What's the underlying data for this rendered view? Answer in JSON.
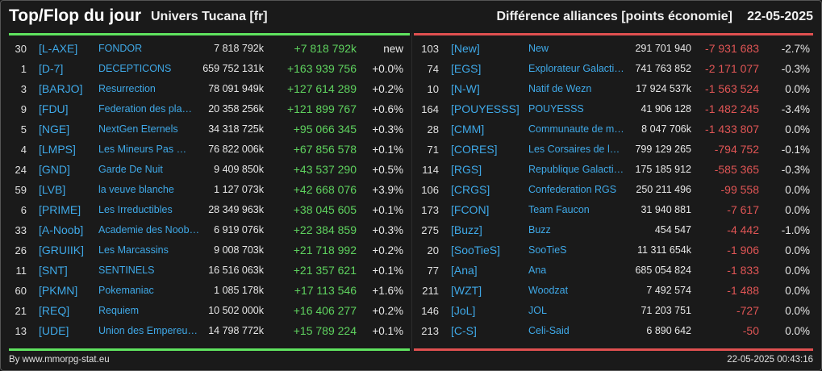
{
  "header": {
    "title": "Top/Flop du jour",
    "universe": "Univers Tucana [fr]",
    "subtitle": "Différence alliances [points économie]",
    "date": "22-05-2025"
  },
  "colors": {
    "gain": "#5fd35f",
    "loss": "#e05555",
    "tag": "#3fa9e8"
  },
  "top": [
    {
      "rank": "30",
      "tag": "[L-AXE]",
      "name": "FONDOR",
      "points": "7 818 792k",
      "change": "+7 818 792k",
      "pct": "new"
    },
    {
      "rank": "1",
      "tag": "[D-7]",
      "name": "DECEPTICONS",
      "points": "659 752 131k",
      "change": "+163 939 756",
      "pct": "+0.0%"
    },
    {
      "rank": "3",
      "tag": "[BARJO]",
      "name": "Resurrection",
      "points": "78 091 949k",
      "change": "+127 614 289",
      "pct": "+0.2%"
    },
    {
      "rank": "9",
      "tag": "[FDU]",
      "name": "Federation des pla…",
      "points": "20 358 256k",
      "change": "+121 899 767",
      "pct": "+0.6%"
    },
    {
      "rank": "5",
      "tag": "[NGE]",
      "name": "NextGen Eternels",
      "points": "34 318 725k",
      "change": "+95 066 345",
      "pct": "+0.3%"
    },
    {
      "rank": "4",
      "tag": "[LMPS]",
      "name": "Les Mineurs Pas …",
      "points": "76 822 006k",
      "change": "+67 856 578",
      "pct": "+0.1%"
    },
    {
      "rank": "24",
      "tag": "[GND]",
      "name": "Garde De Nuit",
      "points": "9 409 850k",
      "change": "+43 537 290",
      "pct": "+0.5%"
    },
    {
      "rank": "59",
      "tag": "[LVB]",
      "name": "la veuve blanche",
      "points": "1 127 073k",
      "change": "+42 668 076",
      "pct": "+3.9%"
    },
    {
      "rank": "6",
      "tag": "[PRIME]",
      "name": "Les Irreductibles",
      "points": "28 349 963k",
      "change": "+38 045 605",
      "pct": "+0.1%"
    },
    {
      "rank": "33",
      "tag": "[A-Noob]",
      "name": "Academie des Noob…",
      "points": "6 919 076k",
      "change": "+22 384 859",
      "pct": "+0.3%"
    },
    {
      "rank": "26",
      "tag": "[GRUIIK]",
      "name": "Les Marcassins",
      "points": "9 008 703k",
      "change": "+21 718 992",
      "pct": "+0.2%"
    },
    {
      "rank": "11",
      "tag": "[SNT]",
      "name": "SENTINELS",
      "points": "16 516 063k",
      "change": "+21 357 621",
      "pct": "+0.1%"
    },
    {
      "rank": "60",
      "tag": "[PKMN]",
      "name": "Pokemaniac",
      "points": "1 085 178k",
      "change": "+17 113 546",
      "pct": "+1.6%"
    },
    {
      "rank": "21",
      "tag": "[REQ]",
      "name": "Requiem",
      "points": "10 502 000k",
      "change": "+16 406 277",
      "pct": "+0.2%"
    },
    {
      "rank": "13",
      "tag": "[UDE]",
      "name": "Union des Empereur…",
      "points": "14 798 772k",
      "change": "+15 789 224",
      "pct": "+0.1%"
    }
  ],
  "flop": [
    {
      "rank": "103",
      "tag": "[New]",
      "name": "New",
      "points": "291 701 940",
      "change": "-7 931 683",
      "pct": "-2.7%"
    },
    {
      "rank": "74",
      "tag": "[EGS]",
      "name": "Explorateur Galacti…",
      "points": "741 763 852",
      "change": "-2 171 077",
      "pct": "-0.3%"
    },
    {
      "rank": "10",
      "tag": "[N-W]",
      "name": "Natif de Wezn",
      "points": "17 924 537k",
      "change": "-1 563 524",
      "pct": "0.0%"
    },
    {
      "rank": "164",
      "tag": "[POUYESSS]",
      "name": "POUYESSS",
      "points": "41 906 128",
      "change": "-1 482 245",
      "pct": "-3.4%"
    },
    {
      "rank": "28",
      "tag": "[CMM]",
      "name": "Communaute de m…",
      "points": "8 047 706k",
      "change": "-1 433 807",
      "pct": "0.0%"
    },
    {
      "rank": "71",
      "tag": "[CORES]",
      "name": "Les Corsaires de l_…",
      "points": "799 129 265",
      "change": "-794 752",
      "pct": "-0.1%"
    },
    {
      "rank": "114",
      "tag": "[RGS]",
      "name": "Republique Galacti…",
      "points": "175 185 912",
      "change": "-585 365",
      "pct": "-0.3%"
    },
    {
      "rank": "106",
      "tag": "[CRGS]",
      "name": "Confederation RGS",
      "points": "250 211 496",
      "change": "-99 558",
      "pct": "0.0%"
    },
    {
      "rank": "173",
      "tag": "[FCON]",
      "name": "Team Faucon",
      "points": "31 940 881",
      "change": "-7 617",
      "pct": "0.0%"
    },
    {
      "rank": "275",
      "tag": "[Buzz]",
      "name": "Buzz",
      "points": "454 547",
      "change": "-4 442",
      "pct": "-1.0%"
    },
    {
      "rank": "20",
      "tag": "[SooTieS]",
      "name": "SooTieS",
      "points": "11 311 654k",
      "change": "-1 906",
      "pct": "0.0%"
    },
    {
      "rank": "77",
      "tag": "[Ana]",
      "name": "Ana",
      "points": "685 054 824",
      "change": "-1 833",
      "pct": "0.0%"
    },
    {
      "rank": "211",
      "tag": "[WZT]",
      "name": "Woodzat",
      "points": "7 492 574",
      "change": "-1 488",
      "pct": "0.0%"
    },
    {
      "rank": "146",
      "tag": "[JoL]",
      "name": "JOL",
      "points": "71 203 751",
      "change": "-727",
      "pct": "0.0%"
    },
    {
      "rank": "213",
      "tag": "[C-S]",
      "name": "Celi-Said",
      "points": "6 890 642",
      "change": "-50",
      "pct": "0.0%"
    }
  ],
  "footer": {
    "credit": "By www.mmorpg-stat.eu",
    "timestamp": "22-05-2025 00:43:16"
  }
}
